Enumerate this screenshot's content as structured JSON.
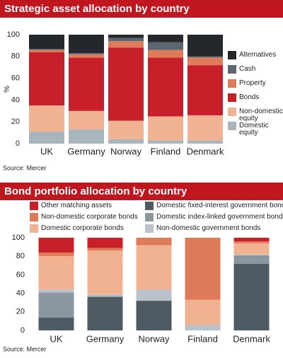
{
  "chart_data": [
    {
      "type": "stacked_bar",
      "title": "Strategic asset allocation by country",
      "ylabel": "%",
      "source": "Source: Mercer",
      "categories": [
        "UK",
        "Germany",
        "Norway",
        "Finland",
        "Denmark"
      ],
      "ylim": [
        0,
        100
      ],
      "yticks": [
        0,
        20,
        40,
        60,
        80,
        100
      ],
      "grid": false,
      "legend": "right",
      "series": [
        {
          "name": "Domestic equity",
          "color": "#a9b5bd",
          "values": [
            11,
            13,
            4,
            3,
            3
          ]
        },
        {
          "name": "Non-domestic equity",
          "color": "#f1b291",
          "values": [
            24,
            17,
            17,
            22,
            23
          ]
        },
        {
          "name": "Bonds",
          "color": "#c8202a",
          "values": [
            49,
            49,
            67,
            54,
            46
          ]
        },
        {
          "name": "Property",
          "color": "#e07b5a",
          "values": [
            2,
            3,
            6,
            7,
            7
          ]
        },
        {
          "name": "Cash",
          "color": "#5b6770",
          "values": [
            1,
            1,
            3,
            7,
            1
          ]
        },
        {
          "name": "Alternatives",
          "color": "#24282d",
          "values": [
            13,
            17,
            3,
            7,
            20
          ]
        }
      ]
    },
    {
      "type": "stacked_bar",
      "title": "Bond portfolio allocation by country",
      "source": "Source: Mercer",
      "categories": [
        "UK",
        "Germany",
        "Norway",
        "Finland",
        "Denmark"
      ],
      "ylim": [
        0,
        100
      ],
      "yticks": [
        0,
        20,
        40,
        60,
        80,
        100
      ],
      "grid": false,
      "legend": "top",
      "series": [
        {
          "name": "Domestic fixed-interest government bonds",
          "color": "#4f5b62",
          "values": [
            14,
            36,
            32,
            0,
            72
          ]
        },
        {
          "name": "Domestic index-linked government bonds",
          "color": "#8a979e",
          "values": [
            27,
            1,
            0,
            0,
            9
          ]
        },
        {
          "name": "Non-domestic government bonds",
          "color": "#b8c2c8",
          "values": [
            3,
            2,
            12,
            6,
            1
          ]
        },
        {
          "name": "Domestic corporate bonds",
          "color": "#f1b291",
          "values": [
            36,
            47,
            48,
            27,
            12
          ]
        },
        {
          "name": "Non-domestic corporate bonds",
          "color": "#e07b5a",
          "values": [
            4,
            3,
            8,
            67,
            2
          ]
        },
        {
          "name": "Other matching assets",
          "color": "#c8202a",
          "values": [
            16,
            11,
            0,
            0,
            4
          ]
        }
      ]
    }
  ]
}
